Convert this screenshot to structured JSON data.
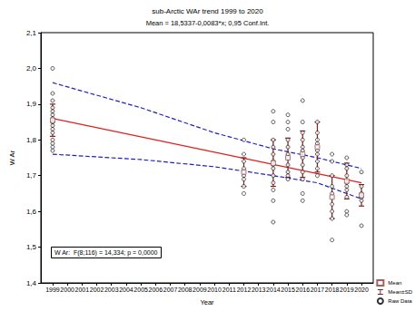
{
  "chart_data": {
    "type": "scatter",
    "title": "sub-Arctic WAr trend 1999 to 2020",
    "subtitle": "Mean = 18,5337-0,0083*x; 0,95 Conf.Int.",
    "x_label": "Year",
    "y_label": "W Ar",
    "annotation": "W Ar:  F(8;116) = 14,334; p = 0,0000",
    "xlim": [
      1998.2,
      2020.8
    ],
    "xticks": [
      1999,
      2000,
      2001,
      2002,
      2003,
      2004,
      2005,
      2006,
      2007,
      2008,
      2009,
      2010,
      2011,
      2012,
      2013,
      2014,
      2015,
      2016,
      2017,
      2018,
      2019,
      2020
    ],
    "ylim": [
      1.4,
      2.1
    ],
    "yticks": [
      {
        "value": 1.4,
        "label": "1,4"
      },
      {
        "value": 1.5,
        "label": "1,5"
      },
      {
        "value": 1.6,
        "label": "1,6"
      },
      {
        "value": 1.7,
        "label": "1,7"
      },
      {
        "value": 1.8,
        "label": "1,8"
      },
      {
        "value": 1.9,
        "label": "1,9"
      },
      {
        "value": 2.0,
        "label": "2,0"
      },
      {
        "value": 2.1,
        "label": "2,1"
      }
    ],
    "grid": false,
    "legend": "bottom-right",
    "series": [
      {
        "name": "Mean",
        "type": "scatter",
        "marker": "square",
        "color": "#8b3a3a",
        "x": [
          1999,
          2012,
          2014,
          2015,
          2016,
          2017,
          2018,
          2019,
          2020
        ],
        "values": [
          1.855,
          1.71,
          1.735,
          1.75,
          1.76,
          1.78,
          1.64,
          1.685,
          1.645
        ]
      },
      {
        "name": "Mean±SD",
        "type": "errorbar",
        "color": "#8b1a1a",
        "x": [
          1999,
          2012,
          2014,
          2015,
          2016,
          2017,
          2018,
          2019,
          2020
        ],
        "values": [
          1.855,
          1.71,
          1.735,
          1.75,
          1.76,
          1.78,
          1.64,
          1.685,
          1.645
        ],
        "sd": [
          0.045,
          0.04,
          0.065,
          0.055,
          0.065,
          0.07,
          0.06,
          0.05,
          0.03
        ]
      },
      {
        "name": "Raw Data",
        "type": "scatter",
        "marker": "circle",
        "color": "#000000",
        "x": [
          1999,
          1999,
          1999,
          1999,
          1999,
          1999,
          1999,
          1999,
          1999,
          1999,
          1999,
          1999,
          1999,
          1999,
          1999,
          1999,
          2012,
          2012,
          2012,
          2012,
          2012,
          2012,
          2012,
          2012,
          2012,
          2014,
          2014,
          2014,
          2014,
          2014,
          2014,
          2014,
          2014,
          2014,
          2014,
          2014,
          2014,
          2014,
          2015,
          2015,
          2015,
          2015,
          2015,
          2015,
          2015,
          2015,
          2015,
          2015,
          2015,
          2016,
          2016,
          2016,
          2016,
          2016,
          2016,
          2016,
          2016,
          2016,
          2016,
          2016,
          2016,
          2017,
          2017,
          2017,
          2017,
          2017,
          2017,
          2017,
          2017,
          2017,
          2017,
          2018,
          2018,
          2018,
          2018,
          2018,
          2018,
          2018,
          2018,
          2018,
          2018,
          2019,
          2019,
          2019,
          2019,
          2019,
          2019,
          2019,
          2019,
          2019,
          2019,
          2020,
          2020,
          2020,
          2020,
          2020,
          2020,
          2020
        ],
        "values": [
          2.0,
          1.93,
          1.91,
          1.89,
          1.88,
          1.87,
          1.86,
          1.85,
          1.85,
          1.84,
          1.83,
          1.82,
          1.8,
          1.79,
          1.78,
          1.77,
          1.8,
          1.76,
          1.74,
          1.72,
          1.71,
          1.7,
          1.69,
          1.67,
          1.65,
          1.88,
          1.85,
          1.8,
          1.78,
          1.76,
          1.74,
          1.73,
          1.72,
          1.7,
          1.68,
          1.66,
          1.63,
          1.57,
          1.87,
          1.85,
          1.83,
          1.8,
          1.78,
          1.76,
          1.75,
          1.73,
          1.71,
          1.7,
          1.69,
          1.91,
          1.85,
          1.82,
          1.8,
          1.78,
          1.77,
          1.75,
          1.73,
          1.71,
          1.69,
          1.65,
          1.63,
          1.85,
          1.82,
          1.8,
          1.79,
          1.78,
          1.77,
          1.76,
          1.74,
          1.72,
          1.7,
          1.76,
          1.74,
          1.7,
          1.67,
          1.65,
          1.64,
          1.62,
          1.6,
          1.58,
          1.52,
          1.75,
          1.73,
          1.72,
          1.7,
          1.68,
          1.67,
          1.66,
          1.64,
          1.6,
          1.59,
          1.71,
          1.67,
          1.65,
          1.64,
          1.64,
          1.63,
          1.56
        ]
      },
      {
        "type": "line",
        "line_style": "solid",
        "color": "#e02020",
        "x": [
          1999,
          2020
        ],
        "values": [
          1.86,
          1.68
        ]
      },
      {
        "type": "line",
        "line_style": "dashed",
        "color": "#2020c0",
        "x": [
          1999,
          2005,
          2010,
          2014,
          2017,
          2020
        ],
        "values": [
          1.96,
          1.89,
          1.82,
          1.775,
          1.75,
          1.72
        ]
      },
      {
        "type": "line",
        "line_style": "dashed",
        "color": "#2020c0",
        "x": [
          1999,
          2005,
          2010,
          2014,
          2017,
          2020
        ],
        "values": [
          1.76,
          1.745,
          1.725,
          1.7,
          1.68,
          1.635
        ]
      }
    ]
  }
}
